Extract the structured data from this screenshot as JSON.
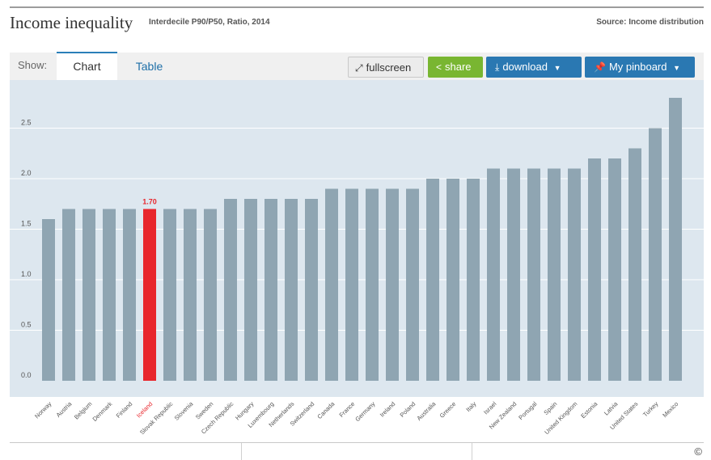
{
  "header": {
    "title": "Income inequality",
    "subtitle": "Interdecile P90/P50, Ratio, 2014",
    "source": "Source: Income distribution"
  },
  "toolbar": {
    "show_label": "Show:",
    "tabs": [
      {
        "label": "Chart"
      },
      {
        "label": "Table"
      }
    ],
    "fullscreen_label": "fullscreen",
    "share_label": "share",
    "download_label": "download",
    "pinboard_label": "My pinboard"
  },
  "footer": {
    "copyright": "©"
  },
  "colors": {
    "bar": "#8fa5b2",
    "highlight": "#e8262c",
    "grid": "#ffffff",
    "accent_blue": "#2a78b2",
    "share_green": "#79b631"
  },
  "icons": [
    "fullscreen-icon",
    "share-icon",
    "download-icon",
    "pin-icon",
    "chevron-down-icon"
  ],
  "chart_data": {
    "type": "bar",
    "title": "Income inequality",
    "categories": [
      "Norway",
      "Austria",
      "Belgium",
      "Denmark",
      "Finland",
      "Iceland",
      "Slovak Republic",
      "Slovenia",
      "Sweden",
      "Czech Republic",
      "Hungary",
      "Luxembourg",
      "Netherlands",
      "Switzerland",
      "Canada",
      "France",
      "Germany",
      "Ireland",
      "Poland",
      "Australia",
      "Greece",
      "Italy",
      "Israel",
      "New Zealand",
      "Portugal",
      "Spain",
      "United Kingdom",
      "Estonia",
      "Latvia",
      "United States",
      "Turkey",
      "Mexico"
    ],
    "values": [
      1.6,
      1.7,
      1.7,
      1.7,
      1.7,
      1.7,
      1.7,
      1.7,
      1.7,
      1.8,
      1.8,
      1.8,
      1.8,
      1.8,
      1.9,
      1.9,
      1.9,
      1.9,
      1.9,
      2.0,
      2.0,
      2.0,
      2.1,
      2.1,
      2.1,
      2.1,
      2.1,
      2.2,
      2.2,
      2.3,
      2.5,
      2.8
    ],
    "highlight": "Iceland",
    "highlight_label": "1.70",
    "yticks": [
      "0.0",
      "0.5",
      "1.0",
      "1.5",
      "2.0",
      "2.5"
    ],
    "ylim": [
      0,
      3
    ],
    "grid": true,
    "xlabel": "",
    "ylabel": ""
  }
}
